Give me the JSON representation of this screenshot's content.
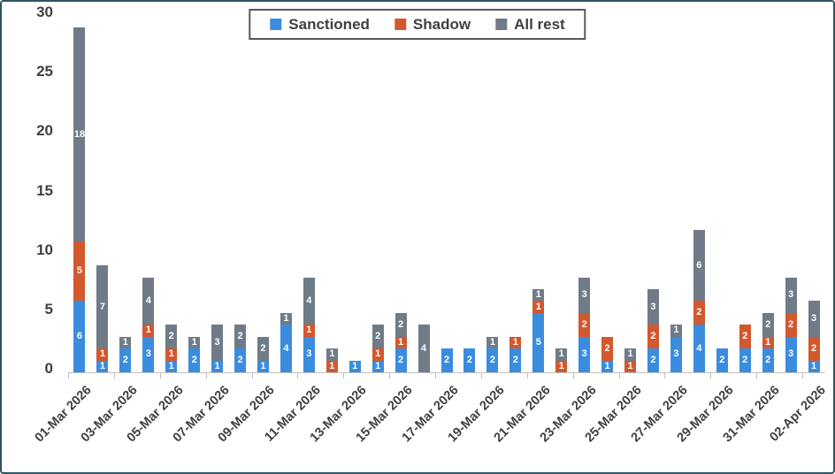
{
  "colors": {
    "sanctioned_blue": "#3A8DDE",
    "shadow_orange": "#D2582D",
    "all_rest_gray": "#6F7B87",
    "text_dark": "#404040",
    "axis_gray": "#BFBFBF",
    "frame_border": "#2E5563",
    "legend_border": "#595959",
    "bar_label_white": "#FFFFFF"
  },
  "legend": {
    "items": [
      "Sanctioned",
      "Shadow",
      "All rest"
    ]
  },
  "chart_data": {
    "type": "bar",
    "subtype": "stacked-vertical",
    "title": "",
    "xlabel": "",
    "ylabel": "",
    "grid": false,
    "legend_position": "top-center",
    "ylim": [
      0,
      30
    ],
    "yticks": [
      0,
      5,
      10,
      15,
      20,
      25,
      30
    ],
    "xtick_every": 2,
    "categories": [
      "01-Mar 2026",
      "02-Mar 2026",
      "03-Mar 2026",
      "04-Mar 2026",
      "05-Mar 2026",
      "06-Mar 2026",
      "07-Mar 2026",
      "08-Mar 2026",
      "09-Mar 2026",
      "10-Mar 2026",
      "11-Mar 2026",
      "12-Mar 2026",
      "13-Mar 2026",
      "14-Mar 2026",
      "15-Mar 2026",
      "16-Mar 2026",
      "17-Mar 2026",
      "18-Mar 2026",
      "19-Mar 2026",
      "20-Mar 2026",
      "21-Mar 2026",
      "22-Mar 2026",
      "23-Mar 2026",
      "24-Mar 2026",
      "25-Mar 2026",
      "26-Mar 2026",
      "27-Mar 2026",
      "28-Mar 2026",
      "29-Mar 2026",
      "30-Mar 2026",
      "31-Mar 2026",
      "01-Apr 2026",
      "02-Apr 2026"
    ],
    "series": [
      {
        "name": "Sanctioned",
        "color": "#3A8DDE",
        "values": [
          6,
          1,
          2,
          3,
          1,
          2,
          1,
          2,
          1,
          4,
          3,
          0,
          1,
          1,
          2,
          0,
          2,
          2,
          2,
          2,
          5,
          0,
          3,
          1,
          0,
          2,
          3,
          4,
          2,
          2,
          2,
          3,
          1
        ]
      },
      {
        "name": "Shadow",
        "color": "#D2582D",
        "values": [
          5,
          1,
          0,
          1,
          1,
          0,
          0,
          0,
          0,
          0,
          1,
          1,
          0,
          1,
          1,
          0,
          0,
          0,
          0,
          1,
          1,
          1,
          2,
          2,
          1,
          2,
          0,
          2,
          0,
          2,
          1,
          2,
          2
        ]
      },
      {
        "name": "All rest",
        "color": "#6F7B87",
        "values": [
          18,
          7,
          1,
          4,
          2,
          1,
          3,
          2,
          2,
          1,
          4,
          1,
          0,
          2,
          2,
          4,
          0,
          0,
          1,
          0,
          1,
          1,
          3,
          0,
          1,
          3,
          1,
          6,
          0,
          0,
          2,
          3,
          3
        ]
      }
    ]
  }
}
